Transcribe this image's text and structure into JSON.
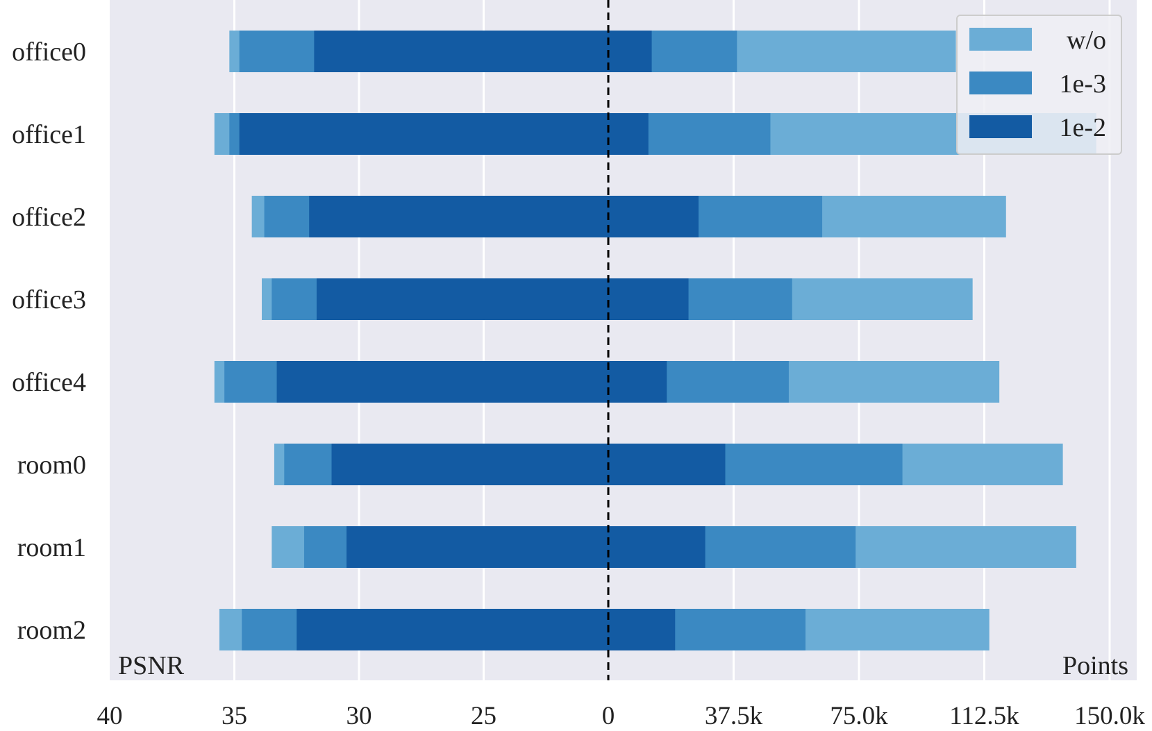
{
  "chart_data": {
    "type": "bar",
    "orientation": "horizontal-diverging",
    "categories": [
      "office0",
      "office1",
      "office2",
      "office3",
      "office4",
      "room0",
      "room1",
      "room2"
    ],
    "left_axis": {
      "label": "PSNR",
      "ticks": [
        40,
        35,
        30,
        25
      ],
      "tick_labels": [
        "40",
        "35",
        "30",
        "25"
      ],
      "center_label": "0",
      "range": [
        20,
        40
      ],
      "series": [
        {
          "name": "w/o",
          "values": [
            35.2,
            35.8,
            34.3,
            33.9,
            35.8,
            33.4,
            33.5,
            35.6
          ]
        },
        {
          "name": "1e-3",
          "values": [
            34.8,
            35.2,
            33.8,
            33.5,
            35.4,
            33.0,
            32.2,
            34.7
          ]
        },
        {
          "name": "1e-2",
          "values": [
            31.8,
            34.8,
            32.0,
            31.7,
            33.3,
            31.1,
            30.5,
            32.5
          ]
        }
      ]
    },
    "right_axis": {
      "label": "Points",
      "ticks": [
        37500,
        75000,
        112500,
        150000
      ],
      "tick_labels": [
        "37.5k",
        "75.0k",
        "112.5k",
        "150.0k"
      ],
      "range": [
        0,
        150000
      ],
      "series": [
        {
          "name": "w/o",
          "values": [
            104000,
            146000,
            119000,
            109000,
            117000,
            136000,
            140000,
            114000
          ]
        },
        {
          "name": "1e-3",
          "values": [
            38500,
            48500,
            64000,
            55000,
            54000,
            88000,
            74000,
            59000
          ]
        },
        {
          "name": "1e-2",
          "values": [
            13000,
            12000,
            27000,
            24000,
            17500,
            35000,
            29000,
            20000
          ]
        }
      ]
    },
    "legend": {
      "position": "top-right",
      "entries": [
        "w/o",
        "1e-3",
        "1e-2"
      ]
    },
    "colors": {
      "w/o": "#6badd6",
      "1e-3": "#3b89c2",
      "1e-2": "#135ba3",
      "background": "#e9e9f1",
      "grid": "#ffffff",
      "center_line": "#000000"
    },
    "grid": true
  }
}
